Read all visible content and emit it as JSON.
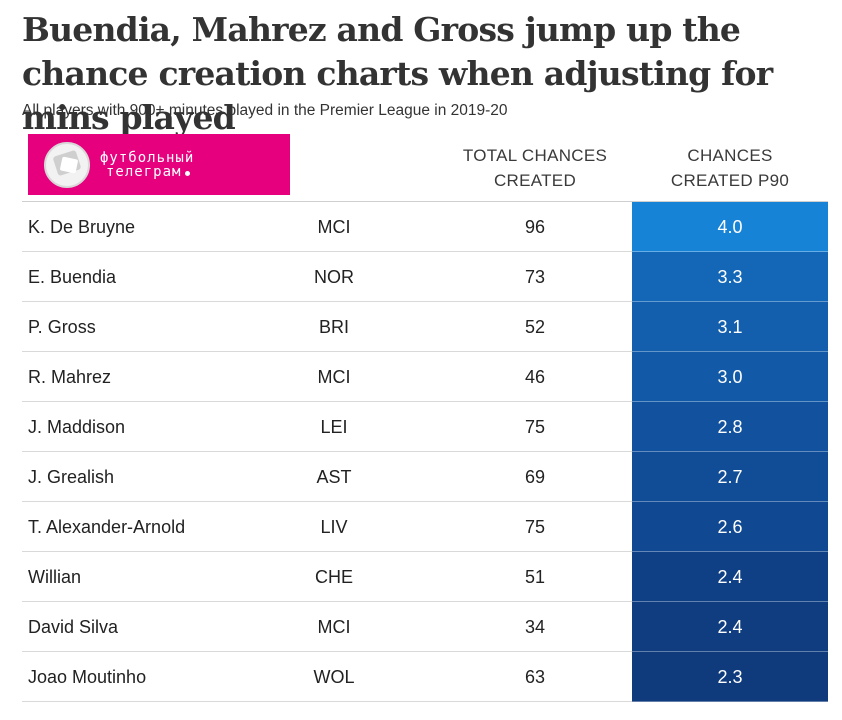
{
  "title": "Buendia, Mahrez and Gross jump up the chance creation charts when adjusting for mins played",
  "subtitle": "All players with 900+ minutes played in the Premier League in 2019-20",
  "logo": {
    "line1": "футбольный",
    "line2": "телеграм"
  },
  "colors": {
    "pink": "#e6007e",
    "scale": [
      "#1783d6",
      "#1466b6",
      "#135fae",
      "#125aa8",
      "#11519d",
      "#114c97",
      "#104891",
      "#0f3f84",
      "#0f3d80",
      "#0f3a7c"
    ]
  },
  "chart_data": {
    "type": "table",
    "title": "Buendia, Mahrez and Gross jump up the chance creation charts when adjusting for mins played",
    "subtitle": "All players with 900+ minutes played in the Premier League in 2019-20",
    "columns": [
      {
        "line1": "",
        "line2": ""
      },
      {
        "line1": "",
        "line2": ""
      },
      {
        "line1": "TOTAL CHANCES",
        "line2": "CREATED"
      },
      {
        "line1": "CHANCES",
        "line2": "CREATED P90"
      }
    ],
    "rows": [
      {
        "player": "K. De Bruyne",
        "club": "MCI",
        "total": 96,
        "p90": "4.0"
      },
      {
        "player": "E. Buendia",
        "club": "NOR",
        "total": 73,
        "p90": "3.3"
      },
      {
        "player": "P. Gross",
        "club": "BRI",
        "total": 52,
        "p90": "3.1"
      },
      {
        "player": "R. Mahrez",
        "club": "MCI",
        "total": 46,
        "p90": "3.0"
      },
      {
        "player": "J. Maddison",
        "club": "LEI",
        "total": 75,
        "p90": "2.8"
      },
      {
        "player": "J. Grealish",
        "club": "AST",
        "total": 69,
        "p90": "2.7"
      },
      {
        "player": "T. Alexander-Arnold",
        "club": "LIV",
        "total": 75,
        "p90": "2.6"
      },
      {
        "player": "Willian",
        "club": "CHE",
        "total": 51,
        "p90": "2.4"
      },
      {
        "player": "David Silva",
        "club": "MCI",
        "total": 34,
        "p90": "2.4"
      },
      {
        "player": "Joao Moutinho",
        "club": "WOL",
        "total": 63,
        "p90": "2.3"
      }
    ]
  }
}
